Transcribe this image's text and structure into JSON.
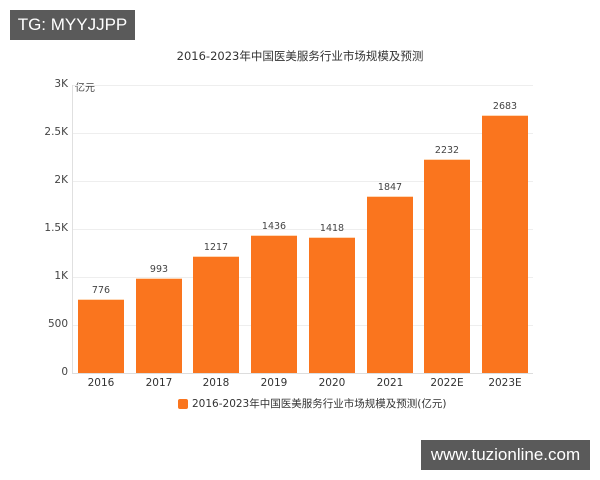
{
  "watermarks": {
    "top_left": "TG: MYYJJPP",
    "bottom_right": "www.tuzionline.com"
  },
  "chart_data": {
    "type": "bar",
    "title": "2016-2023年中国医美服务行业市场规模及预测",
    "ylabel": "亿元",
    "xlabel": "",
    "categories": [
      "2016",
      "2017",
      "2018",
      "2019",
      "2020",
      "2021",
      "2022E",
      "2023E"
    ],
    "values": [
      776,
      993,
      1217,
      1436,
      1418,
      1847,
      2232,
      2683
    ],
    "value_labels": [
      "776",
      "993",
      "1217",
      "1436",
      "1418",
      "1847",
      "2232",
      "2683"
    ],
    "series": [
      {
        "name": "2016-2023年中国医美服务行业市场规模及预测(亿元)",
        "values": [
          776,
          993,
          1217,
          1436,
          1418,
          1847,
          2232,
          2683
        ],
        "color": "#fa751e"
      }
    ],
    "ylim": [
      0,
      3000
    ],
    "yticks": [
      0,
      500,
      1000,
      1500,
      2000,
      2500,
      3000
    ],
    "ytick_labels": [
      "0",
      "500",
      "1K",
      "1.5K",
      "2K",
      "2.5K",
      "3K"
    ],
    "grid": true,
    "legend_position": "bottom",
    "legend": [
      "2016-2023年中国医美服务行业市场规模及预测(亿元)"
    ]
  }
}
